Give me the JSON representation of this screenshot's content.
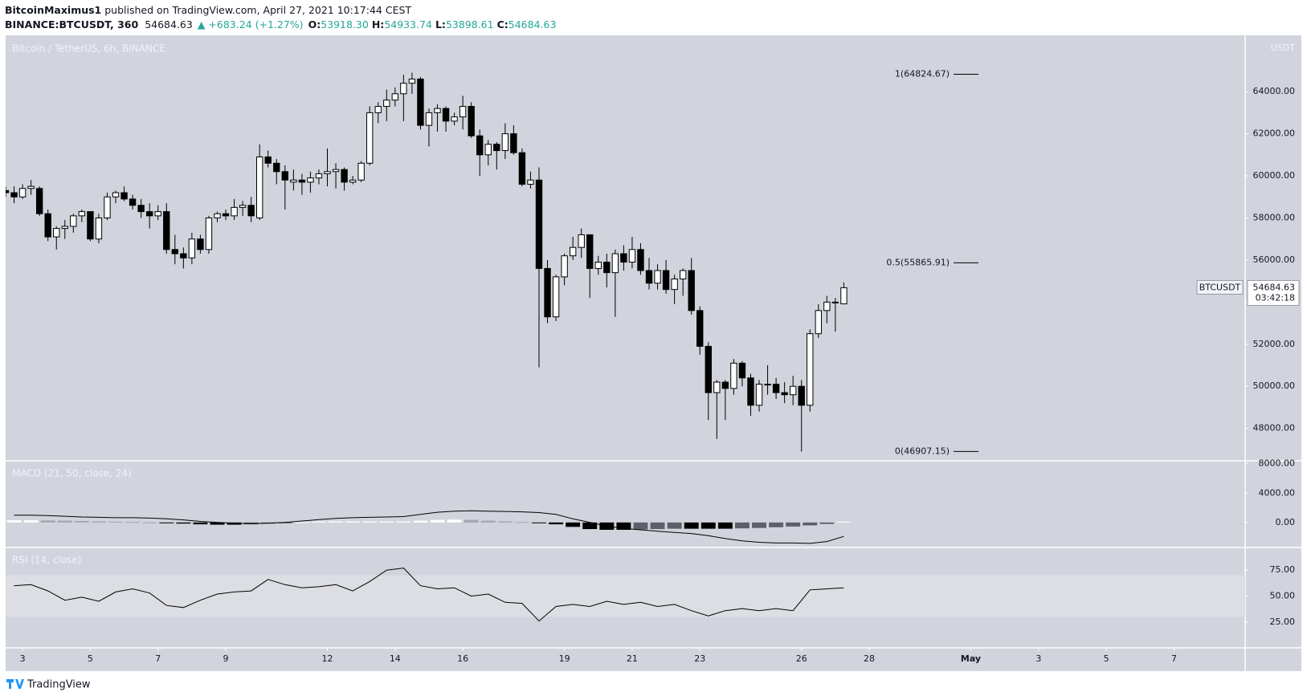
{
  "header": {
    "author": "BitcoinMaximus1",
    "published": " published on TradingView.com, April 27, 2021 10:17:44 CEST",
    "symbol": "BINANCE:BTCUSDT, 360",
    "last": "54684.63",
    "change": "▲ +683.24 (+1.27%)",
    "o_label": "O:",
    "o": "53918.30",
    "h_label": "H:",
    "h": "54933.74",
    "l_label": "L:",
    "l": "53898.61",
    "c_label": "C:",
    "c": "54684.63"
  },
  "footer": "TradingView",
  "chart_data": [
    {
      "type": "candlestick",
      "title": "Bitcoin / TetherUS, 6h, BINANCE",
      "unit": "USDT",
      "up_color": "#ffffff",
      "down_color": "#000000",
      "wick_color": "#000000",
      "xlim": [
        2.5,
        39.1
      ],
      "xticks": [
        3,
        5,
        7,
        9,
        12,
        14,
        16,
        19,
        21,
        23,
        26,
        28,
        {
          "value": 31,
          "label": "May"
        },
        {
          "value": 33,
          "label": "3"
        },
        {
          "value": 35,
          "label": "5"
        },
        {
          "value": 37,
          "label": "7"
        }
      ],
      "ylim": [
        46500,
        66600
      ],
      "yticks": [
        {
          "value": 48000,
          "label": "48000.00"
        },
        {
          "value": 50000,
          "label": "50000.00"
        },
        {
          "value": 52000,
          "label": "52000.00"
        },
        {
          "value": 54000,
          "label": "54000.00"
        },
        {
          "value": 56000,
          "label": "56000.00"
        },
        {
          "value": 58000,
          "label": "58000.00"
        },
        {
          "value": 60000,
          "label": "60000.00"
        },
        {
          "value": 62000,
          "label": "62000.00"
        },
        {
          "value": 64000,
          "label": "64000.00"
        }
      ],
      "grid": false,
      "last_label": "BTCUSDT",
      "countdown": "03:42:18",
      "annotations": [
        {
          "label": "1(64824.67)",
          "value": 64824.67
        },
        {
          "label": "0.5(55865.91)",
          "value": 55865.91
        },
        {
          "label": "0(46907.15)",
          "value": 46907.15
        }
      ],
      "x": [
        2.5,
        2.75,
        3,
        3.25,
        3.5,
        3.75,
        4,
        4.25,
        4.5,
        4.75,
        5,
        5.25,
        5.5,
        5.75,
        6,
        6.25,
        6.5,
        6.75,
        7,
        7.25,
        7.5,
        7.75,
        8,
        8.25,
        8.5,
        8.75,
        9,
        9.25,
        9.5,
        9.75,
        10,
        10.25,
        10.5,
        10.75,
        11,
        11.25,
        11.5,
        11.75,
        12,
        12.25,
        12.5,
        12.75,
        13,
        13.25,
        13.5,
        13.75,
        14,
        14.25,
        14.5,
        14.75,
        15,
        15.25,
        15.5,
        15.75,
        16,
        16.25,
        16.5,
        16.75,
        17,
        17.25,
        17.5,
        17.75,
        18,
        18.25,
        18.5,
        18.75,
        19,
        19.25,
        19.5,
        19.75,
        20,
        20.25,
        20.5,
        20.75,
        21,
        21.25,
        21.5,
        21.75,
        22,
        22.25,
        22.5,
        22.75,
        23,
        23.25,
        23.5,
        23.75,
        24,
        24.25,
        24.5,
        24.75,
        25,
        25.25,
        25.5,
        25.75,
        26,
        26.25,
        26.5,
        26.75,
        27,
        27.25
      ],
      "open": [
        59300,
        59200,
        59000,
        59400,
        59400,
        58200,
        57100,
        57500,
        57600,
        58100,
        58300,
        57000,
        58000,
        59000,
        59200,
        58900,
        58600,
        58300,
        58100,
        58300,
        56500,
        56300,
        56100,
        57000,
        56500,
        58000,
        58200,
        58100,
        58500,
        58600,
        58000,
        60900,
        60600,
        60200,
        59700,
        59800,
        59700,
        59900,
        60100,
        60200,
        60300,
        59700,
        59800,
        60600,
        63000,
        63300,
        63600,
        63900,
        64400,
        64600,
        62400,
        63000,
        63200,
        62600,
        62800,
        63300,
        61900,
        61000,
        61500,
        61200,
        62000,
        61100,
        59600,
        59800,
        55600,
        53300,
        55200,
        56200,
        56600,
        57200,
        55600,
        55900,
        55400,
        56300,
        55900,
        56500,
        55500,
        54900,
        55500,
        54600,
        55100,
        55500,
        53600,
        51900,
        49700,
        50200,
        49900,
        51100,
        50400,
        49100,
        50100,
        50100,
        49700,
        49600,
        50000,
        49100,
        52500,
        53600,
        54000,
        53918.3
      ],
      "high": [
        59500,
        59500,
        59600,
        59800,
        59500,
        58400,
        57600,
        57900,
        58200,
        58400,
        58300,
        58200,
        59200,
        59300,
        59500,
        59100,
        58900,
        58700,
        58600,
        58700,
        57200,
        56600,
        57300,
        57200,
        58100,
        58300,
        58400,
        58900,
        58800,
        59000,
        61500,
        61200,
        60800,
        60500,
        60300,
        60100,
        60200,
        60300,
        61300,
        60600,
        60400,
        60000,
        60700,
        63300,
        63500,
        64100,
        64200,
        64800,
        64900,
        64700,
        63200,
        63400,
        63300,
        63000,
        63800,
        63500,
        62200,
        61700,
        61600,
        62500,
        62400,
        61300,
        60200,
        60400,
        56000,
        55300,
        56300,
        57100,
        57500,
        57200,
        56200,
        56300,
        56500,
        56700,
        57100,
        56800,
        56100,
        55800,
        56000,
        55300,
        55600,
        56100,
        53800,
        52100,
        50300,
        50300,
        51300,
        51200,
        50600,
        50300,
        51000,
        50400,
        50200,
        50500,
        50300,
        52700,
        53900,
        54300,
        54200,
        54933.74
      ],
      "low": [
        59000,
        58700,
        58900,
        59100,
        58100,
        56900,
        56500,
        57000,
        57300,
        57800,
        56900,
        56800,
        57900,
        58700,
        58800,
        58400,
        58000,
        57500,
        57900,
        56300,
        55800,
        55600,
        55800,
        56300,
        56300,
        57800,
        57900,
        57900,
        58100,
        57800,
        57900,
        60400,
        59600,
        58400,
        59300,
        59100,
        59200,
        59600,
        59500,
        59400,
        59300,
        59600,
        59700,
        60500,
        62500,
        62600,
        63300,
        62600,
        63900,
        62200,
        61400,
        62100,
        62100,
        62400,
        62200,
        61800,
        60000,
        60500,
        60300,
        60800,
        61000,
        59500,
        59400,
        50900,
        53000,
        53100,
        54800,
        56000,
        56100,
        54200,
        55300,
        54700,
        53300,
        55500,
        55600,
        55300,
        54600,
        54600,
        54400,
        53900,
        54300,
        53400,
        51500,
        48400,
        47500,
        48400,
        49600,
        50000,
        48600,
        48800,
        49600,
        49400,
        49200,
        49100,
        46900,
        48800,
        52300,
        53000,
        52600,
        53898.61
      ],
      "close": [
        59200,
        59000,
        59400,
        59500,
        58200,
        57100,
        57500,
        57600,
        58100,
        58300,
        57000,
        58000,
        59000,
        59200,
        58900,
        58600,
        58300,
        58100,
        58300,
        56500,
        56300,
        56100,
        57000,
        56500,
        58000,
        58200,
        58100,
        58500,
        58600,
        58100,
        60900,
        60600,
        60200,
        59800,
        59800,
        59700,
        59900,
        60100,
        60200,
        60300,
        59700,
        59800,
        60600,
        63000,
        63300,
        63600,
        63900,
        64400,
        64600,
        62400,
        63000,
        63200,
        62600,
        62800,
        63300,
        61900,
        61000,
        61500,
        61200,
        62000,
        61100,
        59600,
        59800,
        55600,
        53300,
        55200,
        56200,
        56600,
        57200,
        55600,
        55900,
        55400,
        56300,
        55900,
        56500,
        55500,
        54900,
        55500,
        54600,
        55100,
        55500,
        53600,
        51900,
        49700,
        50200,
        49900,
        51100,
        50400,
        49100,
        50100,
        50100,
        49700,
        49600,
        50000,
        49100,
        52500,
        53600,
        54000,
        54000,
        54684.63
      ]
    },
    {
      "type": "macd",
      "title": "MACD (21, 50, close, 24)",
      "ylim": [
        -3300,
        8300
      ],
      "yticks": [
        {
          "value": 0,
          "label": "0.00"
        },
        {
          "value": 4000,
          "label": "4000.00"
        },
        {
          "value": 8000,
          "label": "8000.00"
        }
      ],
      "x": [
        2.75,
        3.25,
        3.75,
        4.25,
        4.75,
        5.25,
        5.75,
        6.25,
        6.75,
        7.25,
        7.75,
        8.25,
        8.75,
        9.25,
        9.75,
        10.25,
        10.75,
        11.25,
        11.75,
        12.25,
        12.75,
        13.25,
        13.75,
        14.25,
        14.75,
        15.25,
        15.75,
        16.25,
        16.75,
        17.25,
        17.75,
        18.25,
        18.75,
        19.25,
        19.75,
        20.25,
        20.75,
        21.25,
        21.75,
        22.25,
        22.75,
        23.25,
        23.75,
        24.25,
        24.75,
        25.25,
        25.75,
        26.25,
        26.75,
        27.25
      ],
      "series": [
        {
          "type": "line",
          "color": "#000000",
          "values": [
            1000,
            1000,
            950,
            850,
            750,
            700,
            650,
            650,
            600,
            500,
            350,
            150,
            0,
            -100,
            -150,
            -100,
            0,
            200,
            400,
            550,
            650,
            700,
            750,
            800,
            1100,
            1400,
            1550,
            1600,
            1550,
            1500,
            1450,
            1350,
            1100,
            500,
            0,
            -500,
            -800,
            -1000,
            -1200,
            -1350,
            -1500,
            -1800,
            -2200,
            -2500,
            -2700,
            -2800,
            -2800,
            -2850,
            -2600,
            -1900
          ]
        },
        {
          "type": "bar",
          "colors": {
            "pos_up": "#ffffff",
            "pos_down": "#a3a6ad",
            "neg_down": "#000000",
            "neg_up": "#5d6068"
          },
          "values": [
            300,
            300,
            280,
            250,
            200,
            150,
            100,
            50,
            0,
            -50,
            -150,
            -250,
            -300,
            -300,
            -250,
            -150,
            -50,
            50,
            120,
            150,
            150,
            150,
            150,
            150,
            250,
            350,
            400,
            350,
            250,
            150,
            50,
            -50,
            -250,
            -600,
            -900,
            -1000,
            -1000,
            -950,
            -900,
            -850,
            -850,
            -850,
            -850,
            -800,
            -750,
            -650,
            -550,
            -400,
            -200,
            100
          ]
        }
      ]
    },
    {
      "type": "line",
      "title": "RSI (14, close)",
      "color": "#000000",
      "band": [
        30,
        70
      ],
      "ylim": [
        1,
        96
      ],
      "yticks": [
        {
          "value": 25,
          "label": "25.00"
        },
        {
          "value": 50,
          "label": "50.00"
        },
        {
          "value": 75,
          "label": "75.00"
        }
      ],
      "x": [
        2.75,
        3.25,
        3.75,
        4.25,
        4.75,
        5.25,
        5.75,
        6.25,
        6.75,
        7.25,
        7.75,
        8.25,
        8.75,
        9.25,
        9.75,
        10.25,
        10.75,
        11.25,
        11.75,
        12.25,
        12.75,
        13.25,
        13.75,
        14.25,
        14.75,
        15.25,
        15.75,
        16.25,
        16.75,
        17.25,
        17.75,
        18.25,
        18.75,
        19.25,
        19.75,
        20.25,
        20.75,
        21.25,
        21.75,
        22.25,
        22.75,
        23.25,
        23.75,
        24.25,
        24.75,
        25.25,
        25.75,
        26.25,
        26.75,
        27.25
      ],
      "values": [
        60,
        61,
        55,
        46,
        49,
        45,
        54,
        57,
        53,
        41,
        39,
        46,
        52,
        54,
        55,
        66,
        61,
        58,
        59,
        61,
        55,
        64,
        75,
        77,
        60,
        57,
        58,
        50,
        52,
        44,
        43,
        26,
        40,
        42,
        40,
        45,
        42,
        44,
        40,
        42,
        36,
        31,
        36,
        38,
        36,
        38,
        36,
        56,
        57,
        58
      ]
    }
  ]
}
